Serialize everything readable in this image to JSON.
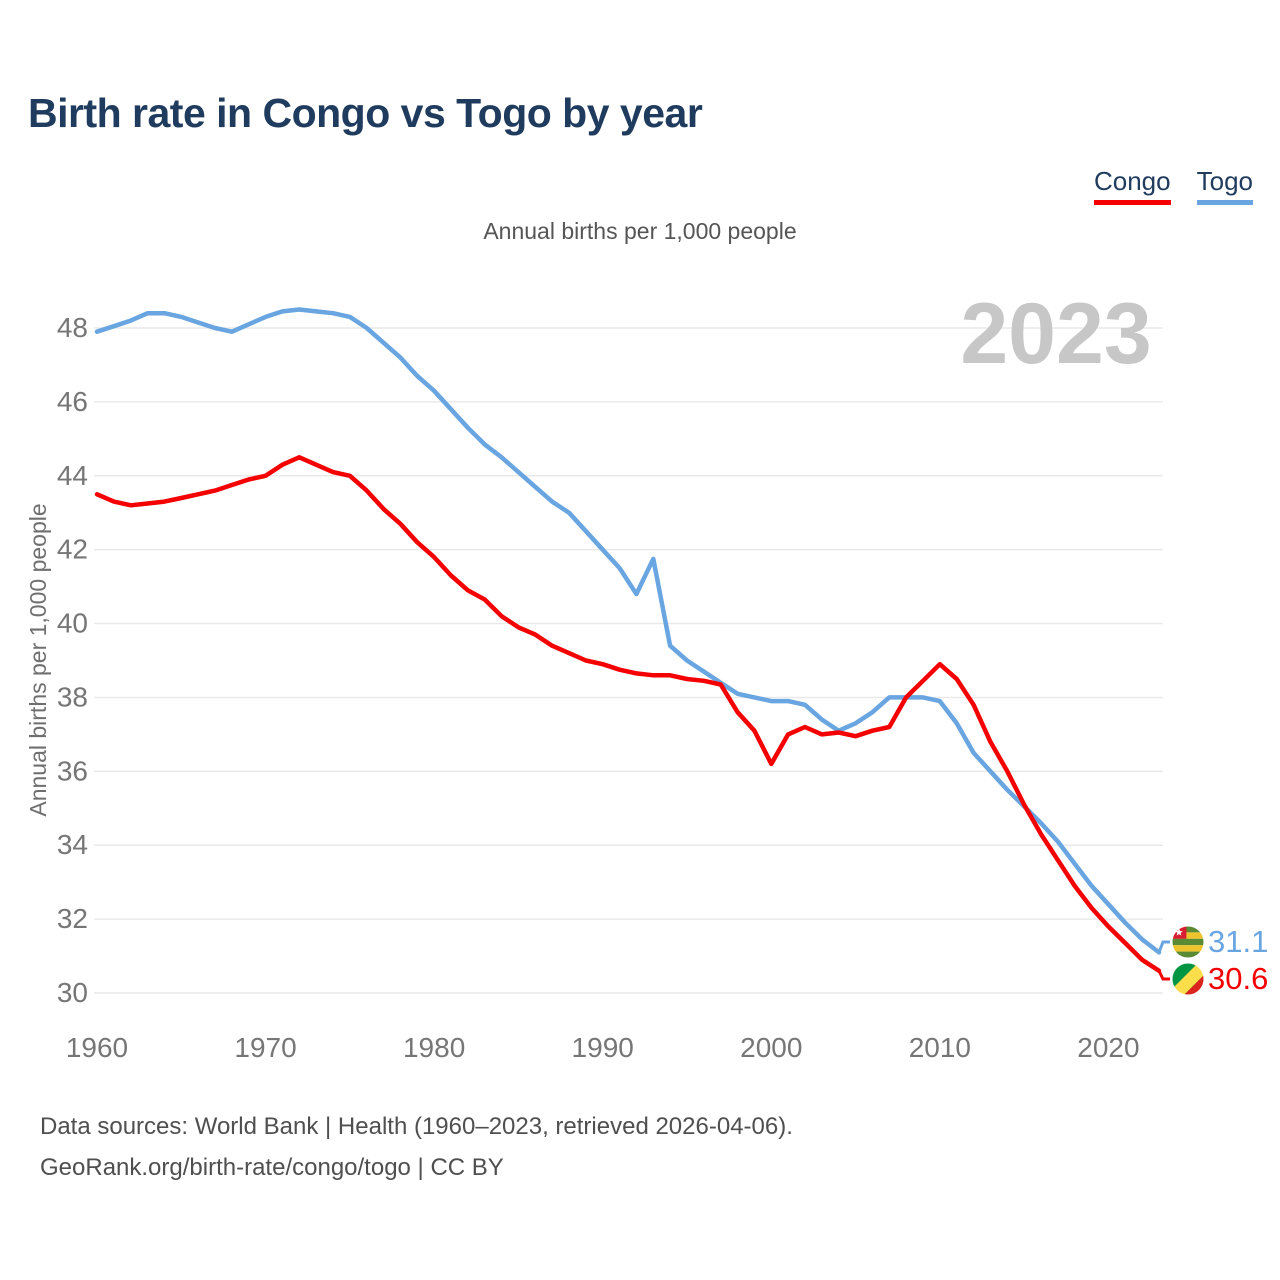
{
  "title": "Birth rate in Congo vs Togo by year",
  "subtitle": "Annual births per 1,000 people",
  "watermark_year": "2023",
  "legend": {
    "congo": {
      "label": "Congo",
      "color": "#f40000"
    },
    "togo": {
      "label": "Togo",
      "color": "#69a5e0"
    }
  },
  "end_labels": {
    "togo": {
      "series": "Togo",
      "value": "31.1",
      "color": "#69a5e0"
    },
    "congo": {
      "series": "Congo",
      "value": "30.6",
      "color": "#f40000"
    }
  },
  "footer": {
    "line1": "Data sources: World Bank | Health (1960–2023, retrieved 2026-04-06).",
    "line2": "GeoRank.org/birth-rate/congo/togo | CC BY"
  },
  "chart_data": {
    "type": "line",
    "title": "Birth rate in Congo vs Togo by year",
    "ylabel": "Annual births per 1,000 people",
    "x_start": 1960,
    "x_end": 2023,
    "xticks": [
      1960,
      1970,
      1980,
      1990,
      2000,
      2010,
      2020
    ],
    "yticks": [
      30,
      32,
      34,
      36,
      38,
      40,
      42,
      44,
      46,
      48
    ],
    "ylim": [
      29.0,
      49.6
    ],
    "grid": true,
    "legend_position": "top-right",
    "series": [
      {
        "name": "Congo",
        "color": "#f40000",
        "end_value": 30.6,
        "values": [
          43.5,
          43.3,
          43.2,
          43.25,
          43.3,
          43.4,
          43.5,
          43.6,
          43.75,
          43.9,
          44.0,
          44.3,
          44.5,
          44.3,
          44.1,
          44.0,
          43.6,
          43.1,
          42.7,
          42.2,
          41.8,
          41.3,
          40.9,
          40.65,
          40.2,
          39.9,
          39.7,
          39.4,
          39.2,
          39.0,
          38.9,
          38.75,
          38.65,
          38.6,
          38.6,
          38.5,
          38.45,
          38.35,
          37.6,
          37.1,
          36.2,
          37.0,
          37.2,
          37.0,
          37.05,
          36.95,
          37.1,
          37.2,
          38.0,
          38.45,
          38.9,
          38.5,
          37.8,
          36.8,
          36.0,
          35.1,
          34.3,
          33.6,
          32.9,
          32.3,
          31.8,
          31.35,
          30.9,
          30.6
        ]
      },
      {
        "name": "Togo",
        "color": "#69a5e0",
        "end_value": 31.1,
        "values": [
          47.9,
          48.05,
          48.2,
          48.4,
          48.4,
          48.3,
          48.15,
          48.0,
          47.9,
          48.1,
          48.3,
          48.45,
          48.5,
          48.45,
          48.4,
          48.3,
          48.0,
          47.6,
          47.2,
          46.7,
          46.3,
          45.8,
          45.3,
          44.85,
          44.5,
          44.1,
          43.7,
          43.3,
          43.0,
          42.5,
          42.0,
          41.5,
          40.8,
          41.75,
          39.4,
          39.0,
          38.7,
          38.4,
          38.1,
          38.0,
          37.9,
          37.9,
          37.8,
          37.4,
          37.1,
          37.3,
          37.6,
          38.0,
          38.0,
          38.0,
          37.9,
          37.3,
          36.5,
          36.0,
          35.5,
          35.05,
          34.6,
          34.1,
          33.5,
          32.9,
          32.4,
          31.9,
          31.45,
          31.1
        ]
      }
    ]
  }
}
